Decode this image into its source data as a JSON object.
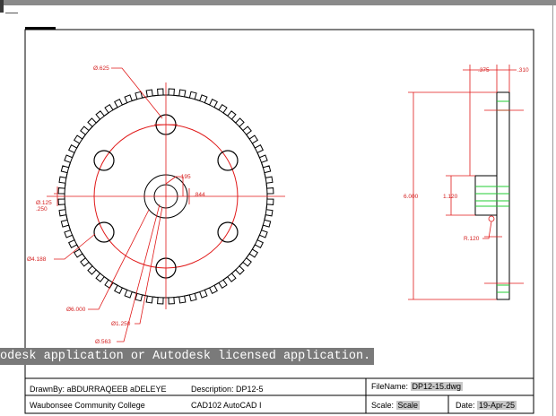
{
  "drawing": {
    "gear_labels": {
      "bolt_hole_dia": "Ø.625",
      "center_hole_dim": ".195",
      "center_hole_depth": ".844",
      "left_small_a": "Ø.125",
      "left_small_b": ".250",
      "bolt_circle_dia": "Ø4.188",
      "outer_dia": "Ø6.000",
      "hub_dia": "Ø1.250",
      "bore_dia": "Ø.563"
    },
    "side_labels": {
      "flange_thickness": ".375",
      "plate_thickness": ".310",
      "overall_height": "6.000",
      "hub_height": "1.120",
      "fillet_radius": "R.120"
    },
    "colors": {
      "geometry": "#000000",
      "dimensions": "#e01818",
      "hidden": "#22cc33"
    }
  },
  "banner": {
    "text": "odesk application or Autodesk licensed application."
  },
  "title_block": {
    "drawn_by": "DrawnBy: aBDURRAQEEB aDELEYE",
    "description": "Description: DP12-5",
    "filename_label": "FileName:",
    "filename_value": "DP12-15.dwg",
    "college": "Waubonsee Community College",
    "course": "CAD102 AutoCAD I",
    "scale_label": "Scale:",
    "scale_value": "Scale",
    "date_label": "Date:",
    "date_value": "19-Apr-25"
  }
}
